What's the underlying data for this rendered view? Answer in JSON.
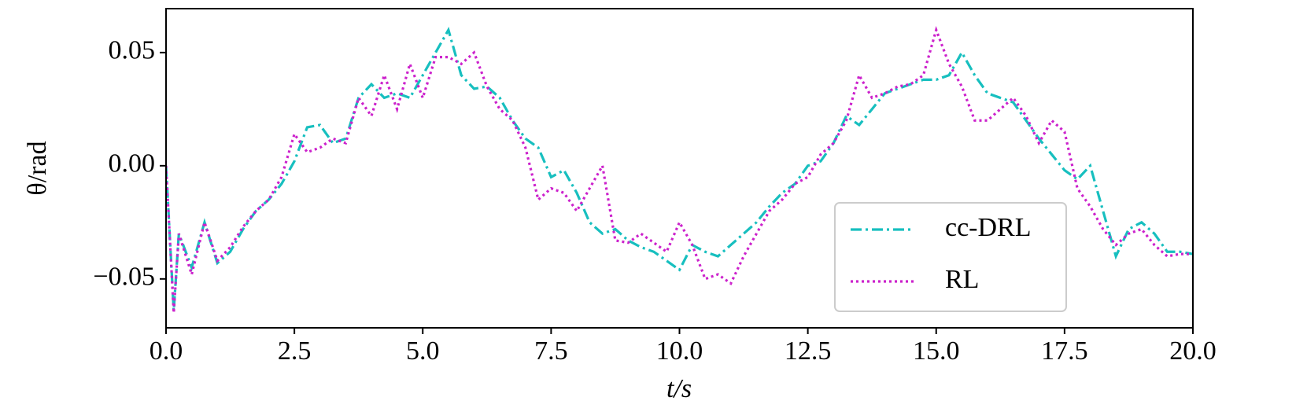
{
  "chart_data": {
    "type": "line",
    "x_label": "t/s",
    "y_label": "θ/rad",
    "x": [
      0,
      0.15,
      0.25,
      0.5,
      0.75,
      1.0,
      1.25,
      1.5,
      1.75,
      2.0,
      2.25,
      2.5,
      2.75,
      3.0,
      3.25,
      3.5,
      3.75,
      4.0,
      4.25,
      4.5,
      4.75,
      5.0,
      5.25,
      5.5,
      5.75,
      6.0,
      6.25,
      6.5,
      6.75,
      7.0,
      7.25,
      7.5,
      7.75,
      8.0,
      8.25,
      8.5,
      8.75,
      9.0,
      9.25,
      9.5,
      9.75,
      10.0,
      10.25,
      10.5,
      10.75,
      11.0,
      11.25,
      11.5,
      11.75,
      12.0,
      12.25,
      12.5,
      12.75,
      13.0,
      13.25,
      13.5,
      13.75,
      14.0,
      14.25,
      14.5,
      14.75,
      15.0,
      15.25,
      15.5,
      15.75,
      16.0,
      16.25,
      16.5,
      16.75,
      17.0,
      17.25,
      17.5,
      17.75,
      18.0,
      18.25,
      18.5,
      18.75,
      19.0,
      19.25,
      19.5,
      19.75,
      20.0
    ],
    "series": [
      {
        "name": "cc-DRL",
        "color": "#17bfbf",
        "dash": "dashdot",
        "values": [
          0,
          -0.064,
          -0.03,
          -0.045,
          -0.025,
          -0.043,
          -0.038,
          -0.028,
          -0.02,
          -0.015,
          -0.008,
          0.002,
          0.017,
          0.018,
          0.01,
          0.012,
          0.03,
          0.036,
          0.03,
          0.032,
          0.03,
          0.04,
          0.05,
          0.06,
          0.04,
          0.034,
          0.035,
          0.03,
          0.02,
          0.012,
          0.008,
          -0.005,
          -0.002,
          -0.012,
          -0.025,
          -0.03,
          -0.028,
          -0.033,
          -0.036,
          -0.038,
          -0.042,
          -0.046,
          -0.035,
          -0.038,
          -0.04,
          -0.035,
          -0.03,
          -0.025,
          -0.018,
          -0.012,
          -0.008,
          0.0,
          0.002,
          0.01,
          0.022,
          0.018,
          0.025,
          0.032,
          0.034,
          0.036,
          0.038,
          0.038,
          0.04,
          0.05,
          0.04,
          0.032,
          0.03,
          0.028,
          0.02,
          0.012,
          0.005,
          -0.002,
          -0.006,
          0.0,
          -0.02,
          -0.04,
          -0.028,
          -0.025,
          -0.03,
          -0.038,
          -0.038,
          -0.039
        ]
      },
      {
        "name": "RL",
        "color": "#cc22cc",
        "dash": "dotted",
        "values": [
          0,
          -0.065,
          -0.03,
          -0.048,
          -0.025,
          -0.042,
          -0.036,
          -0.027,
          -0.02,
          -0.015,
          -0.005,
          0.014,
          0.006,
          0.008,
          0.012,
          0.01,
          0.03,
          0.022,
          0.04,
          0.025,
          0.045,
          0.03,
          0.048,
          0.048,
          0.045,
          0.05,
          0.035,
          0.025,
          0.02,
          0.008,
          -0.015,
          -0.01,
          -0.012,
          -0.02,
          -0.01,
          0.0,
          -0.033,
          -0.034,
          -0.03,
          -0.034,
          -0.038,
          -0.025,
          -0.035,
          -0.05,
          -0.048,
          -0.052,
          -0.04,
          -0.03,
          -0.02,
          -0.015,
          -0.008,
          -0.005,
          0.005,
          0.01,
          0.02,
          0.04,
          0.03,
          0.032,
          0.035,
          0.036,
          0.04,
          0.06,
          0.045,
          0.035,
          0.02,
          0.02,
          0.025,
          0.03,
          0.022,
          0.01,
          0.02,
          0.015,
          -0.01,
          -0.018,
          -0.028,
          -0.035,
          -0.03,
          -0.028,
          -0.035,
          -0.04,
          -0.039,
          -0.039
        ]
      }
    ],
    "xlim": [
      0,
      20
    ],
    "ylim": [
      -0.0716,
      0.0694
    ],
    "xticks": [
      {
        "value": 0,
        "label": "0.0"
      },
      2.5,
      {
        "value": 5,
        "label": "5.0"
      },
      7.5,
      {
        "value": 10,
        "label": "10.0"
      },
      12.5,
      {
        "value": 15,
        "label": "15.0"
      },
      17.5,
      {
        "value": 20,
        "label": "20.0"
      }
    ],
    "yticks": [
      {
        "value": -0.05,
        "label": "−0.05"
      },
      {
        "value": 0,
        "label": "0.00"
      },
      {
        "value": 0.05,
        "label": "0.05"
      }
    ],
    "grid": false,
    "legend": "lower right"
  }
}
